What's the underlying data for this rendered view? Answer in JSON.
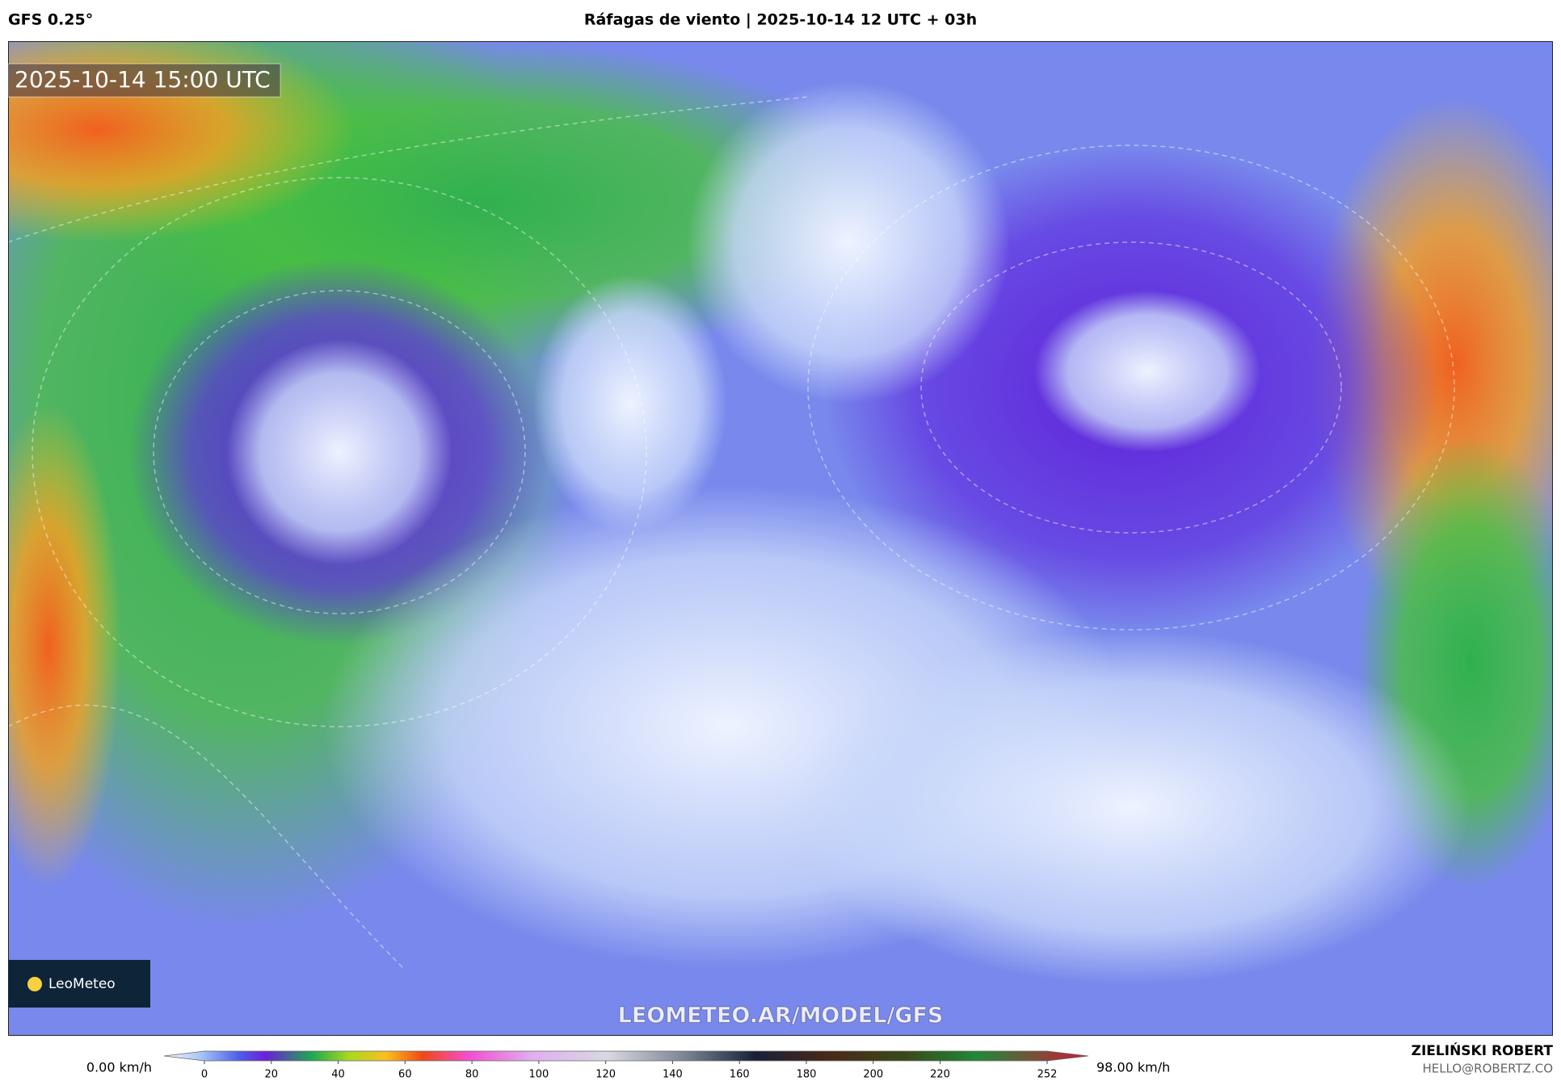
{
  "header": {
    "model": "GFS 0.25°",
    "title": "Ráfagas de viento | 2025-10-14 12 UTC + 03h"
  },
  "map": {
    "timestamp": "2025-10-14 15:00 UTC",
    "watermark": "LEOMETEO.AR/MODEL/GFS",
    "logo": "LeoMeteo"
  },
  "colorbar": {
    "min_label": "0.00 km/h",
    "max_label": "98.00 km/h",
    "range": [
      0,
      252
    ],
    "ticks": [
      0,
      20,
      40,
      60,
      80,
      100,
      120,
      140,
      160,
      180,
      200,
      220,
      252
    ]
  },
  "footer": {
    "author": "ZIELIŃSKI ROBERT",
    "email": "HELLO@ROBERTZ.CO"
  }
}
